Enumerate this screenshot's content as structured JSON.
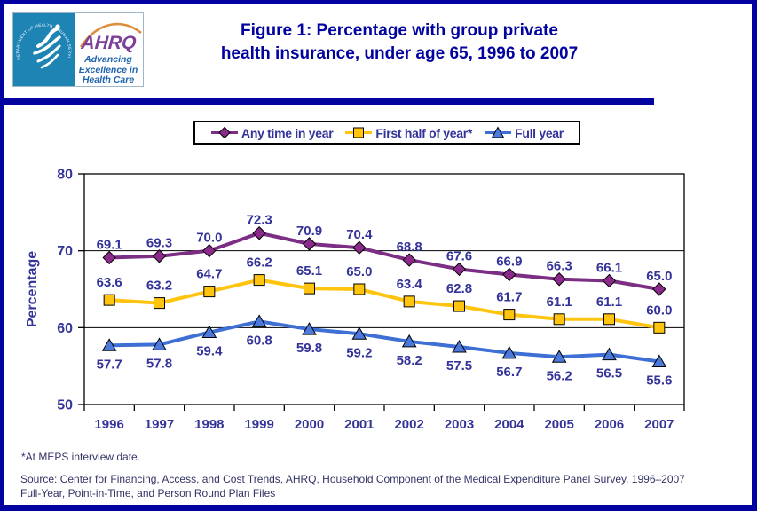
{
  "logo": {
    "hhs_ring_text": "DEPARTMENT OF HEALTH & HUMAN SERVICES • USA",
    "ahrq_acronym": "AHRQ",
    "tagline_lines": [
      "Advancing",
      "Excellence in",
      "Health Care"
    ]
  },
  "title": {
    "line1": "Figure 1: Percentage with group private",
    "line2": "health insurance, under age 65, 1996 to 2007"
  },
  "footnotes": {
    "note": "*At MEPS interview date.",
    "source_line1": "Source: Center for Financing, Access, and Cost Trends, AHRQ, Household Component of the Medical Expenditure Panel Survey, 1996–2007",
    "source_line2": "Full-Year, Point-in-Time, and Person Round Plan Files"
  },
  "colors": {
    "page_border": "#0202A0",
    "title_text": "#0202A0",
    "header_bar": "#0202A0",
    "axis_text": "#333399",
    "footnote_text": "#333366",
    "hhs_teal": "#1E84B4",
    "ahrq_purple": "#7D3F98",
    "arc_orange": "#DD8E3C"
  },
  "chart_data": {
    "type": "line",
    "title": "Figure 1: Percentage with group private health insurance, under age 65, 1996 to 2007",
    "categories": [
      "1996",
      "1997",
      "1998",
      "1999",
      "2000",
      "2001",
      "2002",
      "2003",
      "2004",
      "2005",
      "2006",
      "2007"
    ],
    "series": [
      {
        "name": "Any time in year",
        "marker": "diamond",
        "color": "#7B2E83",
        "marker_fill": "#8B2A8B",
        "values": [
          69.1,
          69.3,
          70.0,
          72.3,
          70.9,
          70.4,
          68.8,
          67.6,
          66.9,
          66.3,
          66.1,
          65.0
        ]
      },
      {
        "name": "First half of year*",
        "marker": "square",
        "color": "#FFC40D",
        "marker_fill": "#FFC40D",
        "values": [
          63.6,
          63.2,
          64.7,
          66.2,
          65.1,
          65.0,
          63.4,
          62.8,
          61.7,
          61.1,
          61.1,
          60.0
        ]
      },
      {
        "name": "Full year",
        "marker": "triangle",
        "color": "#3E6FD4",
        "marker_fill": "#4B79DC",
        "values": [
          57.7,
          57.8,
          59.4,
          60.8,
          59.8,
          59.2,
          58.2,
          57.5,
          56.7,
          56.2,
          56.5,
          55.6
        ]
      }
    ],
    "xlabel": "",
    "ylabel": "Percentage",
    "ylim": [
      50,
      80
    ],
    "yticks": [
      50,
      60,
      70,
      80
    ],
    "grid": "horizontal",
    "legend_position": "top",
    "data_labels": true
  }
}
